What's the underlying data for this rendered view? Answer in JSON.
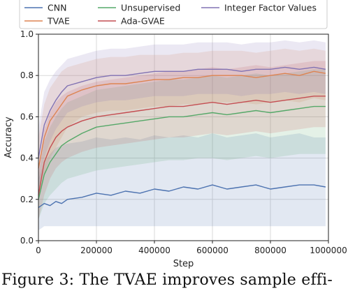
{
  "caption": "Figure 3: The TVAE improves sample effi-",
  "chart_data": {
    "type": "line",
    "xlabel": "Step",
    "ylabel": "Accuracy",
    "xlim": [
      0,
      1000000
    ],
    "ylim": [
      0,
      1.0
    ],
    "xticks": [
      0,
      200000,
      400000,
      600000,
      800000,
      1000000
    ],
    "xtick_labels": [
      "0",
      "200000",
      "400000",
      "600000",
      "800000",
      "1000000"
    ],
    "yticks": [
      0.0,
      0.2,
      0.4,
      0.6,
      0.8,
      1.0
    ],
    "ytick_labels": [
      "0.0",
      "0.2",
      "0.4",
      "0.6",
      "0.8",
      "1.0"
    ],
    "grid": true,
    "legend_position": "top",
    "x": [
      0,
      20000,
      40000,
      60000,
      80000,
      100000,
      150000,
      200000,
      250000,
      300000,
      350000,
      400000,
      450000,
      500000,
      550000,
      600000,
      650000,
      700000,
      750000,
      800000,
      850000,
      900000,
      950000,
      990000
    ],
    "series": [
      {
        "name": "CNN",
        "color": "#4c72b0",
        "values": [
          0.16,
          0.18,
          0.17,
          0.19,
          0.18,
          0.2,
          0.21,
          0.23,
          0.22,
          0.24,
          0.23,
          0.25,
          0.24,
          0.26,
          0.25,
          0.27,
          0.25,
          0.26,
          0.27,
          0.25,
          0.26,
          0.27,
          0.27,
          0.26
        ],
        "lower": [
          0.05,
          0.07,
          0.07,
          0.07,
          0.07,
          0.07,
          0.07,
          0.07,
          0.07,
          0.07,
          0.07,
          0.07,
          0.07,
          0.07,
          0.07,
          0.07,
          0.07,
          0.07,
          0.07,
          0.07,
          0.07,
          0.07,
          0.07,
          0.07
        ],
        "upper": [
          0.3,
          0.38,
          0.42,
          0.45,
          0.46,
          0.47,
          0.48,
          0.5,
          0.49,
          0.5,
          0.49,
          0.51,
          0.5,
          0.51,
          0.5,
          0.52,
          0.5,
          0.51,
          0.52,
          0.5,
          0.51,
          0.52,
          0.5,
          0.5
        ]
      },
      {
        "name": "TVAE",
        "color": "#dd8452",
        "values": [
          0.35,
          0.5,
          0.58,
          0.62,
          0.66,
          0.7,
          0.73,
          0.75,
          0.76,
          0.76,
          0.77,
          0.78,
          0.78,
          0.79,
          0.79,
          0.8,
          0.8,
          0.8,
          0.79,
          0.8,
          0.81,
          0.8,
          0.82,
          0.81
        ],
        "lower": [
          0.2,
          0.32,
          0.4,
          0.45,
          0.5,
          0.55,
          0.6,
          0.62,
          0.63,
          0.63,
          0.64,
          0.65,
          0.65,
          0.66,
          0.66,
          0.67,
          0.67,
          0.67,
          0.66,
          0.67,
          0.68,
          0.67,
          0.69,
          0.68
        ],
        "upper": [
          0.5,
          0.66,
          0.74,
          0.78,
          0.82,
          0.84,
          0.86,
          0.88,
          0.89,
          0.89,
          0.9,
          0.9,
          0.9,
          0.91,
          0.91,
          0.92,
          0.92,
          0.92,
          0.91,
          0.92,
          0.93,
          0.92,
          0.93,
          0.92
        ]
      },
      {
        "name": "Unsupervised",
        "color": "#55a868",
        "values": [
          0.2,
          0.32,
          0.38,
          0.42,
          0.46,
          0.48,
          0.52,
          0.55,
          0.56,
          0.57,
          0.58,
          0.59,
          0.6,
          0.6,
          0.61,
          0.62,
          0.61,
          0.62,
          0.63,
          0.62,
          0.63,
          0.64,
          0.65,
          0.65
        ],
        "lower": [
          0.1,
          0.18,
          0.22,
          0.25,
          0.28,
          0.3,
          0.32,
          0.34,
          0.35,
          0.36,
          0.37,
          0.38,
          0.39,
          0.39,
          0.4,
          0.4,
          0.39,
          0.4,
          0.41,
          0.4,
          0.41,
          0.42,
          0.42,
          0.42
        ],
        "upper": [
          0.32,
          0.48,
          0.55,
          0.6,
          0.64,
          0.67,
          0.7,
          0.73,
          0.74,
          0.75,
          0.76,
          0.77,
          0.78,
          0.78,
          0.79,
          0.8,
          0.79,
          0.8,
          0.81,
          0.8,
          0.81,
          0.82,
          0.83,
          0.83
        ]
      },
      {
        "name": "Ada-GVAE",
        "color": "#c44e52",
        "values": [
          0.22,
          0.38,
          0.45,
          0.5,
          0.53,
          0.55,
          0.58,
          0.6,
          0.61,
          0.62,
          0.63,
          0.64,
          0.65,
          0.65,
          0.66,
          0.67,
          0.66,
          0.67,
          0.68,
          0.67,
          0.68,
          0.69,
          0.7,
          0.7
        ],
        "lower": [
          0.1,
          0.22,
          0.3,
          0.35,
          0.38,
          0.4,
          0.43,
          0.45,
          0.46,
          0.47,
          0.48,
          0.49,
          0.5,
          0.5,
          0.51,
          0.52,
          0.51,
          0.52,
          0.53,
          0.52,
          0.53,
          0.54,
          0.55,
          0.55
        ],
        "upper": [
          0.35,
          0.54,
          0.62,
          0.67,
          0.7,
          0.72,
          0.75,
          0.77,
          0.78,
          0.79,
          0.8,
          0.81,
          0.82,
          0.82,
          0.83,
          0.84,
          0.83,
          0.84,
          0.85,
          0.84,
          0.85,
          0.86,
          0.87,
          0.87
        ]
      },
      {
        "name": "Integer Factor Values",
        "color": "#8172b3",
        "values": [
          0.4,
          0.56,
          0.63,
          0.68,
          0.72,
          0.75,
          0.77,
          0.79,
          0.8,
          0.8,
          0.81,
          0.82,
          0.82,
          0.82,
          0.83,
          0.83,
          0.83,
          0.82,
          0.83,
          0.83,
          0.84,
          0.83,
          0.84,
          0.83
        ],
        "lower": [
          0.25,
          0.4,
          0.48,
          0.54,
          0.58,
          0.62,
          0.65,
          0.67,
          0.68,
          0.68,
          0.69,
          0.7,
          0.7,
          0.7,
          0.71,
          0.71,
          0.71,
          0.7,
          0.71,
          0.71,
          0.72,
          0.71,
          0.72,
          0.71
        ],
        "upper": [
          0.55,
          0.72,
          0.78,
          0.82,
          0.85,
          0.88,
          0.9,
          0.92,
          0.93,
          0.93,
          0.94,
          0.95,
          0.95,
          0.95,
          0.96,
          0.96,
          0.96,
          0.95,
          0.96,
          0.96,
          0.97,
          0.96,
          0.97,
          0.96
        ]
      }
    ]
  }
}
